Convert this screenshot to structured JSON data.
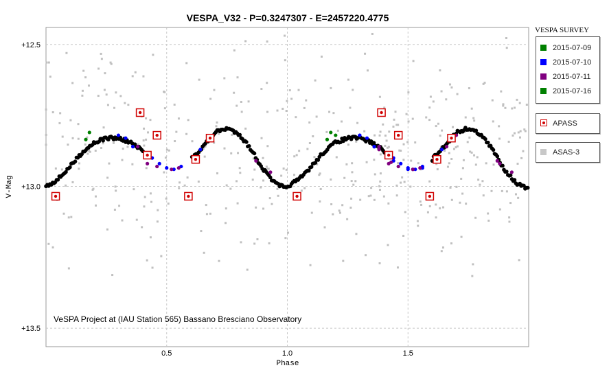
{
  "chart_data": {
    "type": "scatter",
    "title": "VESPA_V32  -  P=0.3247307  -  E=2457220.4775",
    "xlabel": "Phase",
    "ylabel": "V-Mag",
    "xlim": [
      0,
      2
    ],
    "ylim": [
      13.565,
      12.44
    ],
    "y_inverted": true,
    "grid": true,
    "grid_style": "dashed",
    "x_ticks": [
      0.5,
      1.0,
      1.5
    ],
    "x_tick_labels": [
      "0.5",
      "1.0",
      "1.5"
    ],
    "y_ticks": [
      12.5,
      13.0,
      13.5
    ],
    "y_tick_labels": [
      "+12.5",
      "+13.0",
      "+13.5"
    ],
    "annotation": "VeSPA Project at (IAU Station 565) Bassano Bresciano Observatory",
    "legend_title": "VESPA SURVEY",
    "legend_placement": "right",
    "light_curve": {
      "description_points": [
        [
          0.0,
          13.0
        ],
        [
          0.05,
          12.975
        ],
        [
          0.1,
          12.93
        ],
        [
          0.15,
          12.88
        ],
        [
          0.2,
          12.845
        ],
        [
          0.25,
          12.83
        ],
        [
          0.3,
          12.83
        ],
        [
          0.35,
          12.845
        ],
        [
          0.4,
          12.875
        ],
        [
          0.45,
          12.915
        ],
        [
          0.5,
          12.935
        ],
        [
          0.55,
          12.935
        ],
        [
          0.6,
          12.905
        ],
        [
          0.65,
          12.86
        ],
        [
          0.7,
          12.81
        ],
        [
          0.75,
          12.795
        ],
        [
          0.8,
          12.815
        ],
        [
          0.85,
          12.87
        ],
        [
          0.9,
          12.94
        ],
        [
          0.95,
          12.99
        ],
        [
          1.0,
          13.01
        ]
      ],
      "markers": [
        [
          0.0,
          13.0
        ],
        [
          0.03,
          13.02
        ],
        [
          0.06,
          12.96
        ],
        [
          0.09,
          12.92
        ],
        [
          0.12,
          12.89
        ],
        [
          0.15,
          12.87
        ],
        [
          0.18,
          12.85
        ],
        [
          0.21,
          12.84
        ],
        [
          0.24,
          12.83
        ],
        [
          0.27,
          12.825
        ],
        [
          0.33,
          12.835
        ],
        [
          0.36,
          12.85
        ],
        [
          0.39,
          12.86
        ],
        [
          0.62,
          12.89
        ],
        [
          0.65,
          12.855
        ],
        [
          0.68,
          12.82
        ],
        [
          0.71,
          12.805
        ],
        [
          0.74,
          12.795
        ],
        [
          0.77,
          12.8
        ],
        [
          0.8,
          12.815
        ],
        [
          0.83,
          12.84
        ],
        [
          0.86,
          12.875
        ],
        [
          0.89,
          12.92
        ],
        [
          0.92,
          12.96
        ],
        [
          0.95,
          12.985
        ],
        [
          0.98,
          13.005
        ]
      ]
    },
    "series": [
      {
        "name": "2015-07-09",
        "color": "#008000",
        "points": [
          [
            0.18,
            12.81
          ],
          [
            0.165,
            12.835
          ],
          [
            1.2,
            12.82
          ]
        ]
      },
      {
        "name": "2015-07-10",
        "color": "#0000ff",
        "points": [
          [
            0.3,
            12.82
          ],
          [
            0.33,
            12.83
          ],
          [
            0.36,
            12.86
          ],
          [
            0.44,
            12.9
          ],
          [
            0.47,
            12.92
          ],
          [
            0.5,
            12.935
          ],
          [
            0.53,
            12.94
          ],
          [
            0.56,
            12.93
          ],
          [
            0.61,
            12.905
          ],
          [
            0.64,
            12.87
          ],
          [
            1.3,
            12.82
          ],
          [
            1.36,
            12.86
          ],
          [
            1.44,
            12.91
          ],
          [
            1.5,
            12.94
          ],
          [
            1.56,
            12.935
          ]
        ]
      },
      {
        "name": "2015-07-11",
        "color": "#800080",
        "points": [
          [
            0.38,
            12.86
          ],
          [
            0.42,
            12.92
          ],
          [
            0.46,
            12.93
          ],
          [
            0.52,
            12.94
          ],
          [
            0.55,
            12.935
          ],
          [
            0.87,
            12.91
          ],
          [
            0.93,
            12.95
          ],
          [
            1.38,
            12.87
          ],
          [
            1.43,
            12.915
          ],
          [
            1.52,
            12.94
          ],
          [
            1.62,
            12.91
          ],
          [
            1.66,
            12.86
          ],
          [
            1.7,
            12.82
          ],
          [
            1.88,
            12.92
          ]
        ]
      },
      {
        "name": "2015-07-16",
        "color": "#008000",
        "points": []
      }
    ],
    "apass": {
      "name": "APASS",
      "color": "#d00000",
      "points": [
        [
          0.04,
          13.035
        ],
        [
          0.39,
          12.74
        ],
        [
          0.42,
          12.89
        ],
        [
          0.46,
          12.82
        ],
        [
          0.59,
          13.035
        ],
        [
          0.62,
          12.905
        ],
        [
          0.68,
          12.83
        ],
        [
          1.04,
          13.035
        ],
        [
          1.39,
          12.74
        ],
        [
          1.42,
          12.89
        ],
        [
          1.46,
          12.82
        ],
        [
          1.59,
          13.035
        ],
        [
          1.62,
          12.905
        ],
        [
          1.68,
          12.83
        ]
      ]
    },
    "asas": {
      "name": "ASAS-3",
      "color": "#c0c0c0",
      "count": 460,
      "center_mag": 12.88,
      "scatter_mag": 0.5
    }
  }
}
